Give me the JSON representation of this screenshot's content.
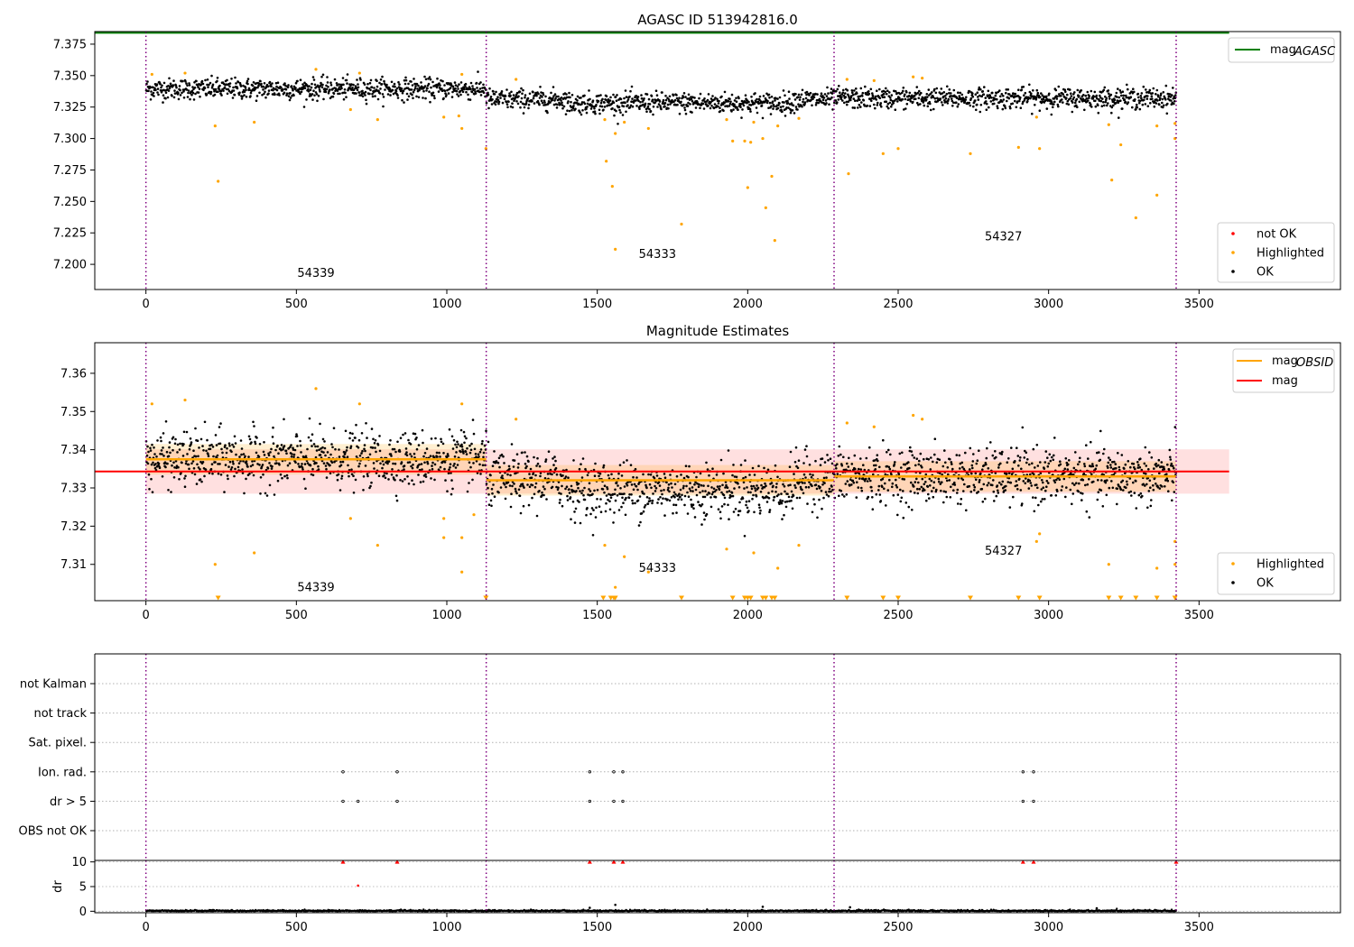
{
  "figure": {
    "obsid_labels": [
      "54339",
      "54333",
      "54327"
    ]
  },
  "chart_data": [
    {
      "type": "scatter",
      "title": "AGASC ID 513942816.0",
      "xlim": [
        -170,
        3970
      ],
      "ylim": [
        7.18,
        7.385
      ],
      "xticks": [
        0,
        500,
        1000,
        1500,
        2000,
        2500,
        3000,
        3500
      ],
      "yticks": [
        "7.200",
        "7.225",
        "7.250",
        "7.275",
        "7.300",
        "7.325",
        "7.350",
        "7.375"
      ],
      "observation_boundaries": [
        0,
        1131,
        2287,
        3424
      ],
      "obsid_label_positions": [
        {
          "x": 565,
          "y": 7.19
        },
        {
          "x": 1700,
          "y": 7.205
        },
        {
          "x": 2850,
          "y": 7.219
        }
      ],
      "mag_agasc": 7.384,
      "obs_means": [
        7.3395,
        7.331,
        7.332
      ],
      "noise": 0.0055,
      "highlighted": [
        [
          20,
          7.351
        ],
        [
          130,
          7.352
        ],
        [
          230,
          7.31
        ],
        [
          240,
          7.266
        ],
        [
          360,
          7.313
        ],
        [
          565,
          7.355
        ],
        [
          680,
          7.323
        ],
        [
          710,
          7.352
        ],
        [
          770,
          7.315
        ],
        [
          990,
          7.317
        ],
        [
          1040,
          7.318
        ],
        [
          1050,
          7.308
        ],
        [
          1050,
          7.351
        ],
        [
          1130,
          7.292
        ],
        [
          1230,
          7.347
        ],
        [
          1525,
          7.315
        ],
        [
          1530,
          7.282
        ],
        [
          1550,
          7.262
        ],
        [
          1560,
          7.304
        ],
        [
          1560,
          7.212
        ],
        [
          1590,
          7.313
        ],
        [
          1670,
          7.308
        ],
        [
          1780,
          7.232
        ],
        [
          1930,
          7.315
        ],
        [
          1950,
          7.298
        ],
        [
          1990,
          7.298
        ],
        [
          2000,
          7.261
        ],
        [
          2010,
          7.297
        ],
        [
          2020,
          7.313
        ],
        [
          2050,
          7.3
        ],
        [
          2060,
          7.245
        ],
        [
          2080,
          7.27
        ],
        [
          2090,
          7.219
        ],
        [
          2100,
          7.31
        ],
        [
          2170,
          7.316
        ],
        [
          2330,
          7.347
        ],
        [
          2335,
          7.272
        ],
        [
          2420,
          7.346
        ],
        [
          2450,
          7.288
        ],
        [
          2500,
          7.292
        ],
        [
          2550,
          7.349
        ],
        [
          2580,
          7.348
        ],
        [
          2740,
          7.288
        ],
        [
          2900,
          7.293
        ],
        [
          2960,
          7.317
        ],
        [
          2970,
          7.292
        ],
        [
          3200,
          7.311
        ],
        [
          3210,
          7.267
        ],
        [
          3240,
          7.295
        ],
        [
          3290,
          7.237
        ],
        [
          3360,
          7.31
        ],
        [
          3360,
          7.255
        ],
        [
          3420,
          7.312
        ],
        [
          3420,
          7.3
        ]
      ],
      "legend_lines": [
        {
          "label": "mag",
          "sub": "AGASC",
          "color": "#008000"
        }
      ],
      "legend_points": [
        {
          "label": "not OK",
          "color": "#ff0000"
        },
        {
          "label": "Highlighted",
          "color": "#ffa500"
        },
        {
          "label": "OK",
          "color": "#000000"
        }
      ]
    },
    {
      "type": "scatter",
      "title": "Magnitude Estimates",
      "xlim": [
        -170,
        3970
      ],
      "ylim": [
        7.3005,
        7.368
      ],
      "xticks": [
        0,
        500,
        1000,
        1500,
        2000,
        2500,
        3000,
        3500
      ],
      "yticks": [
        "7.31",
        "7.32",
        "7.33",
        "7.34",
        "7.35",
        "7.36"
      ],
      "observation_boundaries": [
        0,
        1131,
        2287,
        3424
      ],
      "obsid_label_positions": [
        {
          "x": 565,
          "y": 7.303
        },
        {
          "x": 1700,
          "y": 7.308
        },
        {
          "x": 2850,
          "y": 7.3125
        }
      ],
      "mag": 7.3343,
      "mag_band": [
        7.3285,
        7.3401
      ],
      "mag_obsid": [
        {
          "x0": 0,
          "x1": 1131,
          "mean": 7.3375,
          "lo": 7.3335,
          "hi": 7.3415
        },
        {
          "x0": 1131,
          "x1": 2287,
          "mean": 7.332,
          "lo": 7.328,
          "hi": 7.336
        },
        {
          "x0": 2287,
          "x1": 3424,
          "mean": 7.333,
          "lo": 7.329,
          "hi": 7.337
        }
      ],
      "obs_means": [
        7.3375,
        7.332,
        7.333
      ],
      "noise": 0.0048,
      "highlighted": [
        [
          20,
          7.352
        ],
        [
          130,
          7.353
        ],
        [
          230,
          7.31
        ],
        [
          360,
          7.313
        ],
        [
          565,
          7.356
        ],
        [
          680,
          7.322
        ],
        [
          710,
          7.352
        ],
        [
          770,
          7.315
        ],
        [
          990,
          7.317
        ],
        [
          990,
          7.322
        ],
        [
          1050,
          7.317
        ],
        [
          1050,
          7.308
        ],
        [
          1050,
          7.352
        ],
        [
          1090,
          7.323
        ],
        [
          1230,
          7.348
        ],
        [
          1525,
          7.315
        ],
        [
          1560,
          7.304
        ],
        [
          1590,
          7.312
        ],
        [
          1670,
          7.308
        ],
        [
          1930,
          7.314
        ],
        [
          2020,
          7.313
        ],
        [
          2100,
          7.309
        ],
        [
          2170,
          7.315
        ],
        [
          2330,
          7.347
        ],
        [
          2420,
          7.346
        ],
        [
          2550,
          7.349
        ],
        [
          2580,
          7.348
        ],
        [
          2960,
          7.316
        ],
        [
          2970,
          7.318
        ],
        [
          3200,
          7.31
        ],
        [
          3360,
          7.309
        ],
        [
          3420,
          7.316
        ],
        [
          3420,
          7.31
        ]
      ],
      "below_range": [
        240,
        1130,
        1520,
        1545,
        1555,
        1560,
        1780,
        1950,
        1990,
        2000,
        2010,
        2050,
        2060,
        2080,
        2090,
        2330,
        2450,
        2500,
        2740,
        2900,
        2970,
        3200,
        3240,
        3290,
        3360,
        3420
      ],
      "legend_lines": [
        {
          "label": "mag",
          "sub": "OBSID",
          "color": "#ffa500"
        },
        {
          "label": "mag",
          "sub": "",
          "color": "#ff0000"
        }
      ],
      "legend_points": [
        {
          "label": "Highlighted",
          "color": "#ffa500"
        },
        {
          "label": "OK",
          "color": "#000000"
        }
      ]
    },
    {
      "type": "scatter",
      "title": "",
      "xlim": [
        -170,
        3970
      ],
      "xticks": [
        0,
        500,
        1000,
        1500,
        2000,
        2500,
        3000,
        3500
      ],
      "observation_boundaries": [
        0,
        1131,
        2287,
        3424
      ],
      "flag_rows": [
        "not Kalman",
        "not track",
        "Sat. pixel.",
        "Ion. rad.",
        "dr > 5",
        "OBS not OK"
      ],
      "flag_points": {
        "Ion. rad.": [
          655,
          835,
          1475,
          1555,
          1585,
          2915,
          2950
        ],
        "dr > 5": [
          655,
          705,
          835,
          1475,
          1555,
          1585,
          2915,
          2950
        ]
      },
      "dr_ylabel": "dr",
      "dr_ylim": [
        -0.3,
        10.3
      ],
      "dr_yticks": [
        "0",
        "5",
        "10"
      ],
      "dr_clipped": [
        655,
        835,
        1475,
        1555,
        1585,
        2915,
        2950,
        3424
      ],
      "dr_points": [
        [
          705,
          5.2
        ],
        [
          1560,
          1.3
        ],
        [
          2050,
          0.9
        ],
        [
          2340,
          0.8
        ],
        [
          1475,
          0.7
        ],
        [
          3160,
          0.6
        ]
      ]
    }
  ]
}
